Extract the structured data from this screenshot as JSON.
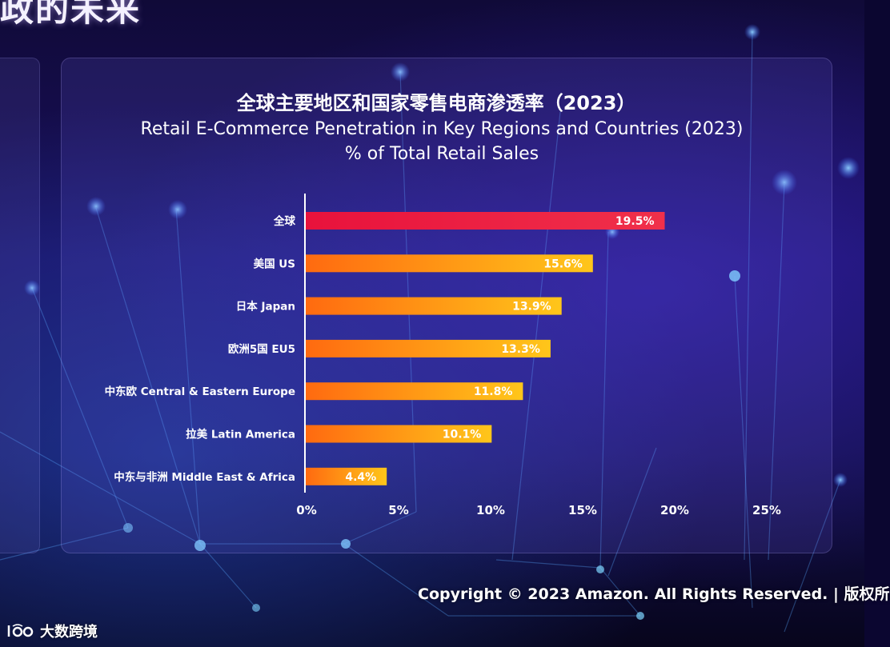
{
  "heading_fragment": "政的未来",
  "copyright": "Copyright © 2023 Amazon. All Rights Reserved. | 版权所",
  "watermark": {
    "text": "大数跨境"
  },
  "colors": {
    "bar_top": "#e8123c",
    "bar_gradient_start": "#ff6a10",
    "bar_gradient_end": "#ffc61a",
    "axis": "#ffffff"
  },
  "chart_data": {
    "type": "bar",
    "orientation": "horizontal",
    "title": "全球主要地区和国家零售电商渗透率（2023）",
    "subtitle": "Retail E-Commerce Penetration in Key Regions and Countries (2023)",
    "subtitle2": "% of Total Retail Sales",
    "categories": [
      "全球",
      "美国 US",
      "日本 Japan",
      "欧洲5国 EU5",
      "中东欧 Central & Eastern Europe",
      "拉美 Latin America",
      "中东与非洲 Middle East & Africa"
    ],
    "values": [
      19.5,
      15.6,
      13.9,
      13.3,
      11.8,
      10.1,
      4.4
    ],
    "value_labels": [
      "19.5%",
      "15.6%",
      "13.9%",
      "13.3%",
      "11.8%",
      "10.1%",
      "4.4%"
    ],
    "x_ticks": [
      0,
      5,
      10,
      15,
      20,
      25
    ],
    "x_tick_labels": [
      "0%",
      "5%",
      "10%",
      "15%",
      "20%",
      "25%"
    ],
    "xlim": [
      0,
      26.5
    ],
    "grid": false,
    "legend": "none"
  }
}
